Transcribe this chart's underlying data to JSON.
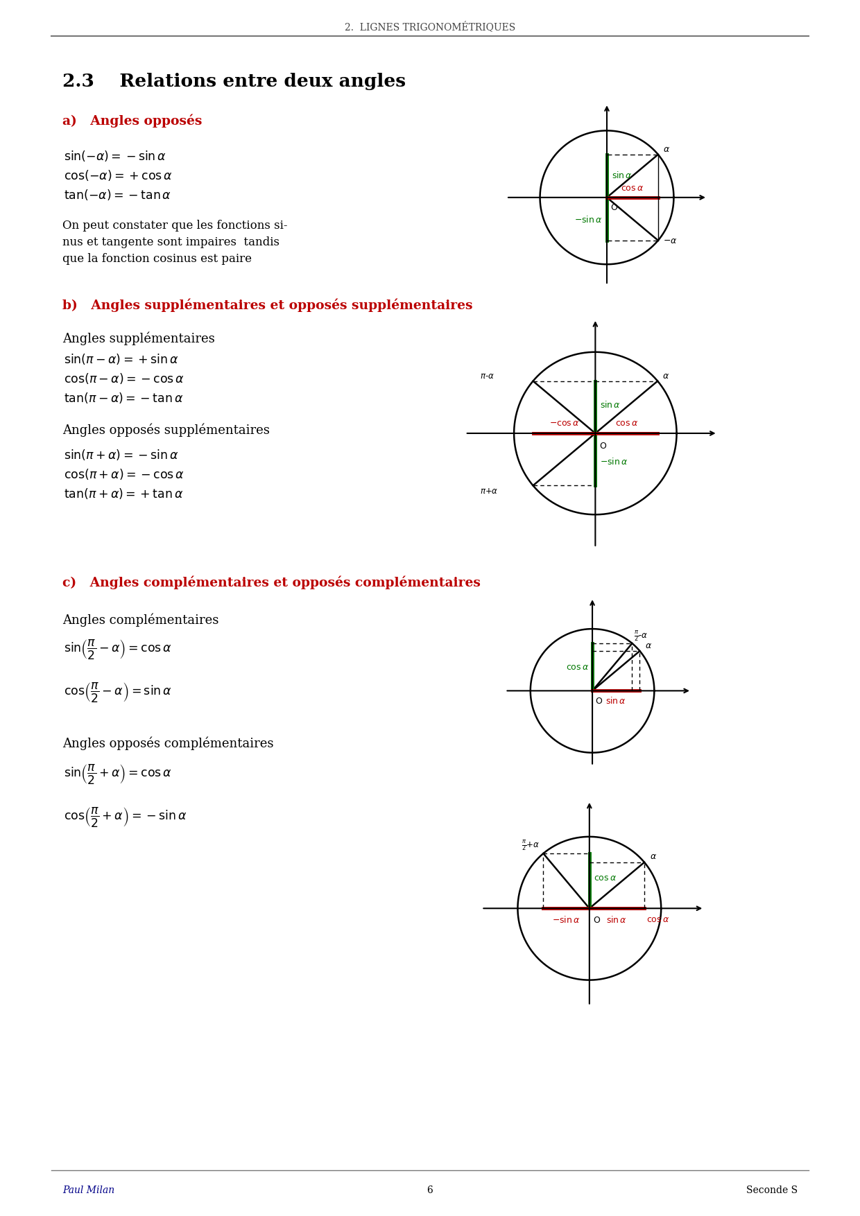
{
  "title_header": "2.  LIGNES TRIGONOMÉTRIQUES",
  "section_title": "2.3    Relations entre deux angles",
  "bg_color": "#ffffff",
  "text_color": "#000000",
  "red_color": "#bb0000",
  "green_color": "#007700",
  "blue_color": "#000088",
  "gray_color": "#777777",
  "page_number": "6",
  "footer_left": "Paul Milan",
  "footer_right": "Seconde S",
  "alpha_deg": 40
}
